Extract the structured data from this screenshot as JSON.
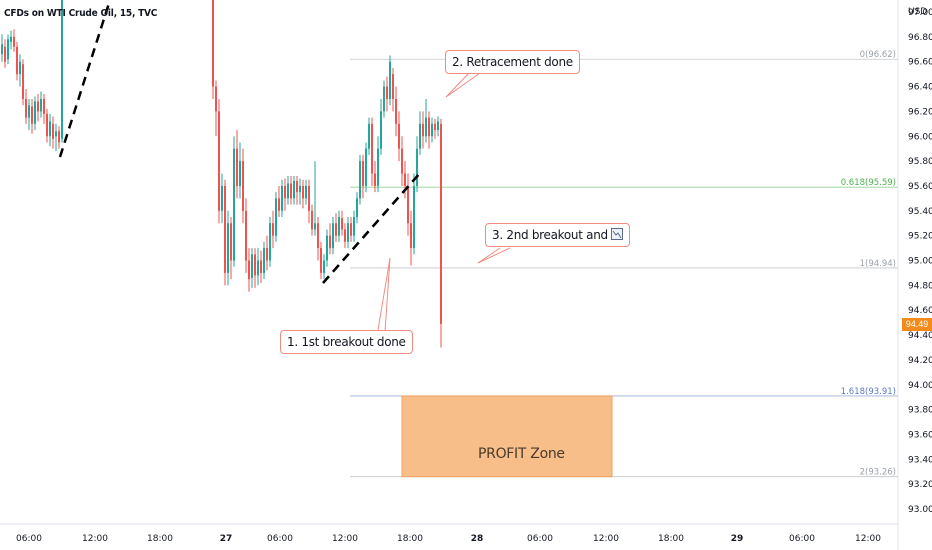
{
  "header": {
    "title": "CFDs on WTI Crude Oil, 15, TVC"
  },
  "currency": "USD",
  "last_price": {
    "label": "94.49",
    "value": 94.49,
    "color": "#f28b1c"
  },
  "annotations": {
    "a1": "1. 1st breakout done",
    "a2": "2. Retracement done",
    "a3": "3. 2nd breakout and",
    "profit": "PROFIT Zone"
  },
  "colors": {
    "up": "#26a69a",
    "down": "#ef5350",
    "profit_fill": "#f8be8a",
    "fib_blue": "#5b7bbf",
    "fib_green": "#4caf50",
    "fib_grey": "#9aa0a6"
  },
  "chart_data": {
    "type": "candlestick",
    "title": "CFDs on WTI Crude Oil, 15, TVC",
    "ylabel": "USD",
    "ylim": [
      92.9,
      97.25
    ],
    "y_ticks": [
      "97.00",
      "96.80",
      "96.60",
      "96.40",
      "96.20",
      "96.00",
      "95.80",
      "95.60",
      "95.40",
      "95.20",
      "95.00",
      "94.80",
      "94.60",
      "94.40",
      "94.20",
      "94.00",
      "93.80",
      "93.60",
      "93.40",
      "93.20",
      "93.00"
    ],
    "x_ticks": [
      "06:00",
      "12:00",
      "18:00",
      "27",
      "06:00",
      "12:00",
      "18:00",
      "28",
      "06:00",
      "12:00",
      "18:00",
      "29",
      "06:00",
      "12:00"
    ],
    "fib_levels": [
      {
        "label": "0(96.62)",
        "value": 96.62,
        "color": "#9aa0a6"
      },
      {
        "label": "0.618(95.59)",
        "value": 95.59,
        "color": "#4caf50"
      },
      {
        "label": "1(94.94)",
        "value": 94.94,
        "color": "#9aa0a6"
      },
      {
        "label": "1.618(93.91)",
        "value": 93.91,
        "color": "#5b7bbf"
      },
      {
        "label": "2(93.26)",
        "value": 93.26,
        "color": "#9aa0a6"
      }
    ],
    "profit_zone": {
      "top": 93.91,
      "bottom": 93.26,
      "label": "PROFIT Zone"
    },
    "last_price": 94.49
  }
}
